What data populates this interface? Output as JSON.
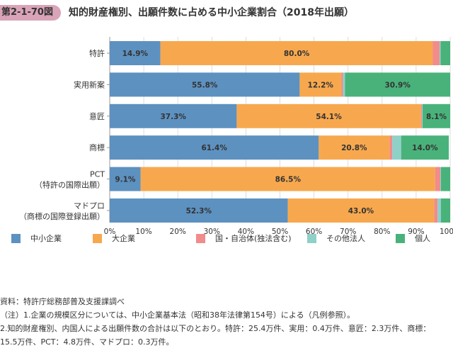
{
  "figure": {
    "number": "第2-1-70図",
    "title": "知的財産権別、出願件数に占める中小企業割合（2018年出願）"
  },
  "colors": {
    "sme": "#5d91c0",
    "large": "#f7a84e",
    "public": "#f28b8b",
    "other": "#8fd0c8",
    "individual": "#49b27a"
  },
  "chart_data": {
    "type": "bar",
    "orientation": "horizontal",
    "stacked": true,
    "categories": [
      "特許",
      "実用新案",
      "意匠",
      "商標",
      "PCT\n（特許の国際出願）",
      "マドプロ\n（商標の国際登録出願）"
    ],
    "series": [
      {
        "name": "中小企業",
        "key": "sme",
        "values": [
          14.9,
          55.8,
          37.3,
          61.4,
          9.1,
          52.3
        ]
      },
      {
        "name": "大企業",
        "key": "large",
        "values": [
          80.0,
          12.2,
          54.1,
          20.8,
          86.5,
          43.0
        ]
      },
      {
        "name": "国・自治体(独法含む)",
        "key": "public",
        "values": [
          2.0,
          0.5,
          0.3,
          0.8,
          1.5,
          1.0
        ]
      },
      {
        "name": "その他法人",
        "key": "other",
        "values": [
          0.3,
          0.6,
          0.2,
          2.6,
          0.2,
          1.0
        ]
      },
      {
        "name": "個人",
        "key": "individual",
        "values": [
          2.8,
          30.9,
          8.1,
          14.0,
          2.7,
          2.7
        ]
      }
    ],
    "data_labels": [
      [
        "14.9%",
        "80.0%",
        "",
        "",
        ""
      ],
      [
        "55.8%",
        "12.2%",
        "",
        "",
        "30.9%"
      ],
      [
        "37.3%",
        "54.1%",
        "",
        "",
        "8.1%"
      ],
      [
        "61.4%",
        "20.8%",
        "",
        "",
        "14.0%"
      ],
      [
        "9.1%",
        "86.5%",
        "",
        "",
        ""
      ],
      [
        "52.3%",
        "43.0%",
        "",
        "",
        ""
      ]
    ],
    "xlim": [
      0,
      100
    ],
    "xticks": [
      "0%",
      "10%",
      "20%",
      "30%",
      "40%",
      "50%",
      "60%",
      "70%",
      "80%",
      "90%",
      "100%"
    ],
    "legend_position": "bottom"
  },
  "notes": [
    "資料：特許庁総務部普及支援課調べ",
    "（注）1.企業の規模区分については、中小企業基本法（昭和38年法律第154号）による（凡例参照）。",
    "2.知的財産権別、内国人による出願件数の合計は以下のとおり。特許：25.4万件、実用：0.4万件、意匠：2.3万件、商標：",
    "15.5万件、PCT：4.8万件、マドプロ：0.3万件。"
  ]
}
